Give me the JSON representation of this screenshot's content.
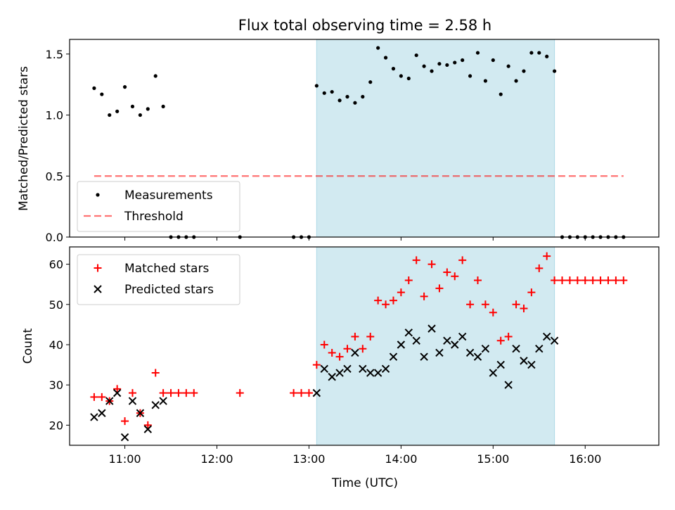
{
  "chart_data": {
    "type": "scatter",
    "title": "Flux total observing time = 2.58 h",
    "xlabel": "Time (UTC)",
    "x_ticks": [
      "11:00",
      "12:00",
      "13:00",
      "14:00",
      "15:00",
      "16:00"
    ],
    "x_range": [
      "10:24",
      "16:48"
    ],
    "shaded_window": [
      "13:05",
      "15:40"
    ],
    "colors": {
      "shade": "#add8e6",
      "measurements": "#000000",
      "threshold": "#ff0000",
      "matched": "#ff0000",
      "predicted": "#000000"
    },
    "panels": [
      {
        "ylabel": "Matched/Predicted stars",
        "ylim": [
          0,
          1.62
        ],
        "y_ticks": [
          "0.0",
          "0.5",
          "1.0",
          "1.5"
        ],
        "legend_position": "lower-left",
        "threshold": {
          "name": "Threshold",
          "value": 0.5,
          "x_range": [
            "10:40",
            "16:25"
          ]
        },
        "series": [
          {
            "name": "Measurements",
            "x": [
              "10:40",
              "10:45",
              "10:50",
              "10:55",
              "11:00",
              "11:05",
              "11:10",
              "11:15",
              "11:20",
              "11:25",
              "11:30",
              "11:35",
              "11:40",
              "11:45",
              "12:15",
              "12:50",
              "12:55",
              "13:00",
              "13:05",
              "13:10",
              "13:15",
              "13:20",
              "13:25",
              "13:30",
              "13:35",
              "13:40",
              "13:45",
              "13:50",
              "13:55",
              "14:00",
              "14:05",
              "14:10",
              "14:15",
              "14:20",
              "14:25",
              "14:30",
              "14:35",
              "14:40",
              "14:45",
              "14:50",
              "14:55",
              "15:00",
              "15:05",
              "15:10",
              "15:15",
              "15:20",
              "15:25",
              "15:30",
              "15:35",
              "15:40",
              "15:45",
              "15:50",
              "15:55",
              "16:00",
              "16:05",
              "16:10",
              "16:15",
              "16:20",
              "16:25"
            ],
            "y": [
              1.22,
              1.17,
              1.0,
              1.03,
              1.23,
              1.07,
              1.0,
              1.05,
              1.32,
              1.07,
              0,
              0,
              0,
              0,
              0,
              0,
              0,
              0,
              1.24,
              1.18,
              1.19,
              1.12,
              1.15,
              1.1,
              1.15,
              1.27,
              1.55,
              1.47,
              1.38,
              1.32,
              1.3,
              1.49,
              1.4,
              1.36,
              1.42,
              1.41,
              1.43,
              1.45,
              1.32,
              1.51,
              1.28,
              1.45,
              1.17,
              1.4,
              1.28,
              1.36,
              1.51,
              1.51,
              1.48,
              1.36,
              0,
              0,
              0,
              0,
              0,
              0,
              0,
              0,
              0
            ]
          }
        ]
      },
      {
        "ylabel": "Count",
        "ylim": [
          15,
          64.3
        ],
        "y_ticks": [
          "20",
          "30",
          "40",
          "50",
          "60"
        ],
        "legend_position": "upper-left",
        "series": [
          {
            "name": "Matched stars",
            "marker": "plus",
            "x": [
              "10:40",
              "10:45",
              "10:50",
              "10:55",
              "11:00",
              "11:05",
              "11:10",
              "11:15",
              "11:20",
              "11:25",
              "11:30",
              "11:35",
              "11:40",
              "11:45",
              "12:15",
              "12:50",
              "12:55",
              "13:00",
              "13:05",
              "13:10",
              "13:15",
              "13:20",
              "13:25",
              "13:30",
              "13:35",
              "13:40",
              "13:45",
              "13:50",
              "13:55",
              "14:00",
              "14:05",
              "14:10",
              "14:15",
              "14:20",
              "14:25",
              "14:30",
              "14:35",
              "14:40",
              "14:45",
              "14:50",
              "14:55",
              "15:00",
              "15:05",
              "15:10",
              "15:15",
              "15:20",
              "15:25",
              "15:30",
              "15:35",
              "15:40",
              "15:45",
              "15:50",
              "15:55",
              "16:00",
              "16:05",
              "16:10",
              "16:15",
              "16:20",
              "16:25"
            ],
            "y": [
              27,
              27,
              26,
              29,
              21,
              28,
              23,
              20,
              33,
              28,
              28,
              28,
              28,
              28,
              28,
              28,
              28,
              28,
              35,
              40,
              38,
              37,
              39,
              42,
              39,
              42,
              51,
              50,
              51,
              53,
              56,
              61,
              52,
              60,
              54,
              58,
              57,
              61,
              50,
              56,
              50,
              48,
              41,
              42,
              50,
              49,
              53,
              59,
              62,
              56,
              56,
              56,
              56,
              56,
              56,
              56,
              56,
              56,
              56
            ]
          },
          {
            "name": "Predicted stars",
            "marker": "x",
            "x": [
              "10:40",
              "10:45",
              "10:50",
              "10:55",
              "11:00",
              "11:05",
              "11:10",
              "11:15",
              "11:20",
              "11:25",
              "13:05",
              "13:10",
              "13:15",
              "13:20",
              "13:25",
              "13:30",
              "13:35",
              "13:40",
              "13:45",
              "13:50",
              "13:55",
              "14:00",
              "14:05",
              "14:10",
              "14:15",
              "14:20",
              "14:25",
              "14:30",
              "14:35",
              "14:40",
              "14:45",
              "14:50",
              "14:55",
              "15:00",
              "15:05",
              "15:10",
              "15:15",
              "15:20",
              "15:25",
              "15:30",
              "15:35",
              "15:40"
            ],
            "y": [
              22,
              23,
              26,
              28,
              17,
              26,
              23,
              19,
              25,
              26,
              28,
              34,
              32,
              33,
              34,
              38,
              34,
              33,
              33,
              34,
              37,
              40,
              43,
              41,
              37,
              44,
              38,
              41,
              40,
              42,
              38,
              37,
              39,
              33,
              35,
              30,
              39,
              36,
              35,
              39,
              42,
              41
            ]
          }
        ]
      }
    ]
  }
}
